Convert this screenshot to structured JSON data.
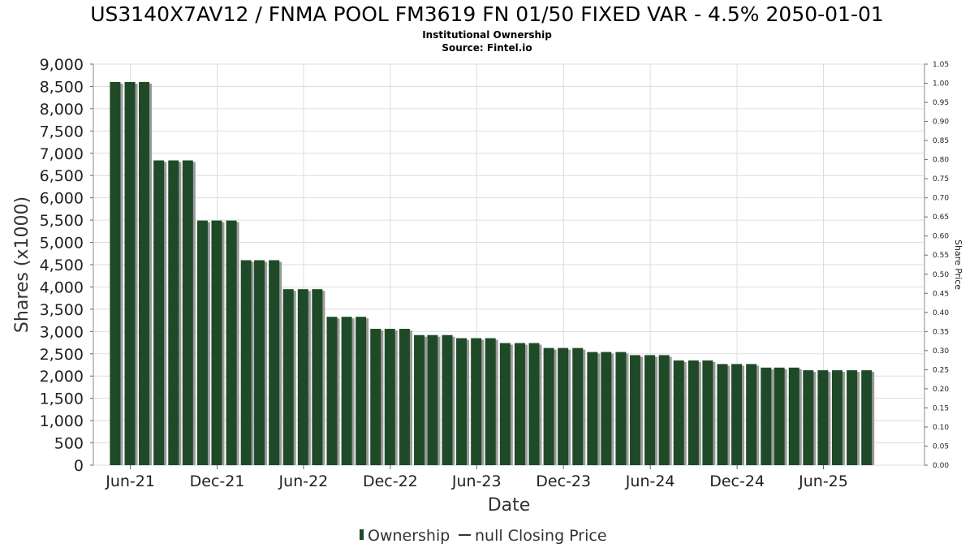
{
  "chart_data": {
    "type": "bar",
    "title": "US3140X7AV12 / FNMA POOL FM3619 FN 01/50 FIXED VAR - 4.5% 2050-01-01",
    "subtitle_lines": [
      "Institutional Ownership",
      "Source: Fintel.io"
    ],
    "xlabel": "Date",
    "ylabel": "Shares (x1000)",
    "y2label": "Share Price",
    "ylim": [
      0,
      9000
    ],
    "y2lim": [
      0,
      1.05
    ],
    "xlim": [
      "2021-03-15",
      "2025-12-31"
    ],
    "grid": true,
    "legend_position": "bottom",
    "colors": {
      "bar": "#1e4a28",
      "bar_shadow": "#9a9a9a",
      "grid": "#dddddd",
      "frame": "#888888"
    },
    "yticks": [
      "0",
      "500",
      "1,000",
      "1,500",
      "2,000",
      "2,500",
      "3,000",
      "3,500",
      "4,000",
      "4,500",
      "5,000",
      "5,500",
      "6,000",
      "6,500",
      "7,000",
      "7,500",
      "8,000",
      "8,500",
      "9,000"
    ],
    "y2ticks": [
      "0.00",
      "0.05",
      "0.10",
      "0.15",
      "0.20",
      "0.25",
      "0.30",
      "0.35",
      "0.40",
      "0.45",
      "0.50",
      "0.55",
      "0.60",
      "0.65",
      "0.70",
      "0.75",
      "0.80",
      "0.85",
      "0.90",
      "0.95",
      "1.00",
      "1.05"
    ],
    "xticks": [
      {
        "label": "Jun-21",
        "date": "2021-06-01"
      },
      {
        "label": "Dec-21",
        "date": "2021-12-01"
      },
      {
        "label": "Jun-22",
        "date": "2022-06-01"
      },
      {
        "label": "Dec-22",
        "date": "2022-12-01"
      },
      {
        "label": "Jun-23",
        "date": "2023-06-01"
      },
      {
        "label": "Dec-23",
        "date": "2023-12-01"
      },
      {
        "label": "Jun-24",
        "date": "2024-06-01"
      },
      {
        "label": "Dec-24",
        "date": "2024-12-01"
      },
      {
        "label": "Jun-25",
        "date": "2025-06-01"
      }
    ],
    "series": [
      {
        "name": "Ownership",
        "x": [
          "2021-04-30",
          "2021-05-31",
          "2021-06-30",
          "2021-07-31",
          "2021-08-31",
          "2021-09-30",
          "2021-10-31",
          "2021-11-30",
          "2021-12-31",
          "2022-01-31",
          "2022-02-28",
          "2022-03-31",
          "2022-04-30",
          "2022-05-31",
          "2022-06-30",
          "2022-07-31",
          "2022-08-31",
          "2022-09-30",
          "2022-10-31",
          "2022-11-30",
          "2022-12-31",
          "2023-01-31",
          "2023-02-28",
          "2023-03-31",
          "2023-04-30",
          "2023-05-31",
          "2023-06-30",
          "2023-07-31",
          "2023-08-31",
          "2023-09-30",
          "2023-10-31",
          "2023-11-30",
          "2023-12-31",
          "2024-01-31",
          "2024-02-29",
          "2024-03-31",
          "2024-04-30",
          "2024-05-31",
          "2024-06-30",
          "2024-07-31",
          "2024-08-31",
          "2024-09-30",
          "2024-10-31",
          "2024-11-30",
          "2024-12-31",
          "2025-01-31",
          "2025-02-28",
          "2025-03-31",
          "2025-04-30",
          "2025-05-31",
          "2025-06-30",
          "2025-07-31",
          "2025-08-31"
        ],
        "values": [
          8600,
          8600,
          8600,
          6840,
          6840,
          6840,
          5490,
          5490,
          5490,
          4600,
          4600,
          4600,
          3950,
          3950,
          3950,
          3330,
          3330,
          3330,
          3060,
          3060,
          3060,
          2920,
          2920,
          2920,
          2850,
          2850,
          2850,
          2740,
          2740,
          2740,
          2630,
          2630,
          2630,
          2540,
          2540,
          2540,
          2470,
          2470,
          2470,
          2350,
          2350,
          2350,
          2270,
          2270,
          2270,
          2190,
          2190,
          2190,
          2130,
          2130,
          2130,
          2130,
          2130
        ]
      }
    ],
    "legend": [
      {
        "label": "Ownership",
        "marker": "bar"
      },
      {
        "label": "null Closing Price",
        "marker": "line"
      }
    ]
  }
}
